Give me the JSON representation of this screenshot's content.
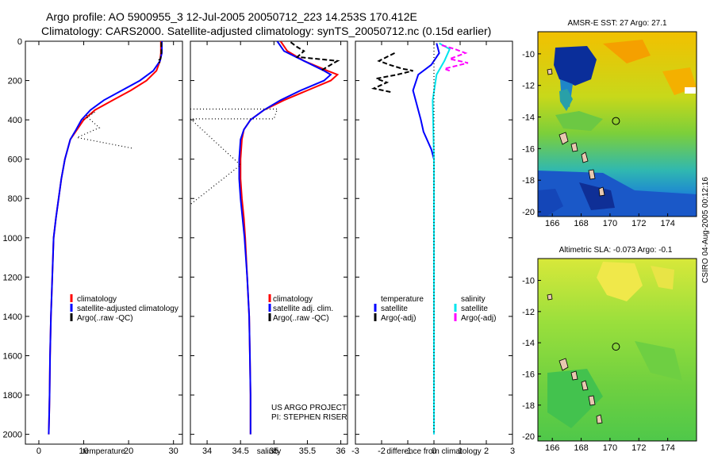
{
  "header": {
    "line1": "Argo profile: AO 5900955_3 12-Jul-2005 20050712_223 14.253S 170.412E",
    "line2": "Climatology: CARS2000. Satellite-adjusted climatology: synTS_20050712.nc (0.15d earlier)"
  },
  "credit": "CSIRO 04-Aug-2005 00:12:16",
  "project": {
    "line1": "US ARGO PROJECT",
    "line2": "PI: STEPHEN RISER"
  },
  "colors": {
    "climatology": "#ff0000",
    "satellite": "#0000ff",
    "salinity_sat": "#00e5ee",
    "argo_salinity": "#ff00ff",
    "argo": "#000000"
  },
  "chart_data": [
    {
      "type": "line",
      "name": "temperature",
      "xlabel": "temperature",
      "ylabel": "",
      "xlim": [
        -3,
        32
      ],
      "ylim": [
        2050,
        0
      ],
      "xticks": [
        "0",
        "10",
        "20",
        "30"
      ],
      "yticks": [
        "0",
        "200",
        "400",
        "600",
        "800",
        "1000",
        "1200",
        "1400",
        "1600",
        "1800",
        "2000"
      ],
      "legend": [
        "climatology",
        "satellite-adjusted climatology",
        "Argo(..raw -QC)"
      ],
      "legend_position": "bottom-right",
      "series": [
        {
          "name": "climatology",
          "color": "#ff0000",
          "style": "solid",
          "x": [
            27.2,
            27.2,
            27.0,
            26.2,
            24.0,
            20.5,
            16.5,
            12.5,
            10.0,
            8.5,
            7.0,
            5.8,
            5.0,
            4.4,
            3.8,
            3.3,
            3.0,
            2.7,
            2.5,
            2.4,
            2.3,
            2.2
          ],
          "y": [
            0,
            60,
            100,
            150,
            200,
            250,
            300,
            350,
            400,
            450,
            500,
            600,
            700,
            800,
            900,
            1000,
            1200,
            1400,
            1600,
            1800,
            1900,
            2000
          ]
        },
        {
          "name": "satellite-adjusted climatology",
          "color": "#0000ff",
          "style": "solid",
          "x": [
            27.4,
            27.4,
            27.0,
            25.5,
            22.5,
            18.5,
            14.5,
            11.5,
            9.5,
            8.3,
            7.0,
            5.8,
            5.0,
            4.4,
            3.8,
            3.3,
            3.0,
            2.7,
            2.5,
            2.4,
            2.3,
            2.2
          ],
          "y": [
            0,
            60,
            100,
            150,
            200,
            250,
            300,
            350,
            400,
            450,
            500,
            600,
            700,
            800,
            900,
            1000,
            1200,
            1400,
            1600,
            1800,
            1900,
            2000
          ]
        },
        {
          "name": "Argo(..raw -QC)",
          "color": "#000000",
          "style": "dashed",
          "x": [
            27.3,
            27.3,
            27.1,
            26.5,
            27.0
          ],
          "y": [
            5,
            60,
            90,
            100,
            110
          ]
        },
        {
          "name": "Argo(..raw -QC)",
          "color": "#000000",
          "style": "dotted",
          "x": [
            10.0,
            12.5,
            10.5,
            13.5,
            8.5,
            21.0
          ],
          "y": [
            400,
            360,
            380,
            440,
            490,
            545
          ]
        }
      ]
    },
    {
      "type": "line",
      "name": "salinity",
      "xlabel": "salinity",
      "ylabel": "",
      "xlim": [
        33.75,
        36.1
      ],
      "ylim": [
        2050,
        0
      ],
      "xticks": [
        "34",
        "34.5",
        "35",
        "35.5",
        "36"
      ],
      "legend": [
        "climatology",
        "satellite adj. clim.",
        "Argo(..raw -QC)"
      ],
      "legend_position": "bottom-right",
      "series": [
        {
          "name": "climatology",
          "color": "#ff0000",
          "style": "solid",
          "x": [
            35.1,
            35.2,
            35.45,
            35.8,
            35.95,
            35.85,
            35.5,
            35.15,
            34.85,
            34.65,
            34.55,
            34.52,
            34.5,
            34.5,
            34.52,
            34.55,
            34.57,
            34.6,
            34.63,
            34.64,
            34.65,
            34.65
          ],
          "y": [
            0,
            50,
            100,
            150,
            170,
            200,
            250,
            300,
            350,
            400,
            450,
            500,
            600,
            700,
            800,
            900,
            1000,
            1200,
            1400,
            1600,
            1800,
            2000
          ]
        },
        {
          "name": "satellite adj. clim.",
          "color": "#0000ff",
          "style": "solid",
          "x": [
            35.05,
            35.15,
            35.45,
            35.75,
            35.85,
            35.75,
            35.4,
            35.1,
            34.85,
            34.65,
            34.55,
            34.5,
            34.48,
            34.48,
            34.5,
            34.53,
            34.56,
            34.6,
            34.63,
            34.64,
            34.65,
            34.65
          ],
          "y": [
            0,
            50,
            100,
            150,
            170,
            200,
            250,
            300,
            350,
            400,
            450,
            500,
            600,
            700,
            800,
            900,
            1000,
            1200,
            1400,
            1600,
            1800,
            2000
          ]
        },
        {
          "name": "Argo(..raw -QC)",
          "color": "#000000",
          "style": "dashed",
          "x": [
            35.25,
            35.35,
            35.45,
            35.35,
            35.95,
            35.85,
            35.7
          ],
          "y": [
            5,
            30,
            50,
            80,
            100,
            120,
            150
          ]
        },
        {
          "name": "Argo(..raw -QC)",
          "color": "#000000",
          "style": "dotted",
          "x": [
            33.75,
            35.05,
            35.0,
            33.75,
            34.5,
            33.75
          ],
          "y": [
            345,
            345,
            395,
            395,
            630,
            830
          ]
        }
      ]
    },
    {
      "type": "line",
      "name": "difference",
      "xlabel": "difference from climatology",
      "ylabel": "",
      "xlim": [
        -3,
        3
      ],
      "ylim": [
        2050,
        0
      ],
      "xticks": [
        "-3",
        "-2",
        "-1",
        "0",
        "1",
        "2",
        "3"
      ],
      "legend": [
        "temperature",
        "satellite",
        "Argo(-adj)",
        "salinity",
        "satellite",
        "Argo(-adj)"
      ],
      "legend_position": "bottom",
      "series": [
        {
          "name": "temperature satellite",
          "color": "#0000ff",
          "style": "solid",
          "x": [
            0.1,
            0.2,
            -0.1,
            -0.6,
            -0.8,
            -0.5,
            -0.4,
            -0.1,
            0.0,
            0.0,
            0.0,
            0.0,
            0.0,
            0.0
          ],
          "y": [
            10,
            60,
            120,
            170,
            250,
            400,
            460,
            550,
            600,
            800,
            1000,
            1400,
            1800,
            2000
          ]
        },
        {
          "name": "salinity satellite",
          "color": "#00e5ee",
          "style": "solid",
          "x": [
            0.2,
            0.6,
            0.4,
            0.1,
            -0.05,
            0.0,
            0.0,
            0.0,
            0.0,
            0.0,
            0.0
          ],
          "y": [
            10,
            40,
            100,
            170,
            300,
            600,
            900,
            1200,
            1500,
            1800,
            2000
          ]
        },
        {
          "name": "Argo(-adj) temperature",
          "color": "#000000",
          "style": "dashed",
          "x": [
            -1.5,
            -1.8,
            -2.1,
            -1.7,
            -1.2,
            -0.8,
            -1.4,
            -2.2,
            -1.8,
            -2.3,
            -1.6
          ],
          "y": [
            60,
            80,
            100,
            120,
            140,
            150,
            170,
            190,
            210,
            240,
            260
          ]
        },
        {
          "name": "Argo(-adj) salinity",
          "color": "#ff00ff",
          "style": "dashed",
          "x": [
            0.3,
            0.8,
            1.2,
            0.6,
            1.3,
            0.4,
            0.6
          ],
          "y": [
            20,
            40,
            60,
            90,
            110,
            140,
            150
          ]
        },
        {
          "name": "zero line",
          "color": "#000000",
          "style": "dotted",
          "x": [
            0,
            0
          ],
          "y": [
            0,
            2000
          ]
        }
      ]
    },
    {
      "type": "heatmap",
      "name": "sst-map",
      "title": "AMSR-E SST: 27 Argo: 27.1",
      "xlim": [
        165,
        176
      ],
      "ylim": [
        -20.3,
        -8.6
      ],
      "xticks": [
        "166",
        "168",
        "170",
        "172",
        "174"
      ],
      "yticks": [
        "-10",
        "-12",
        "-14",
        "-16",
        "-18",
        "-20"
      ],
      "marker": {
        "x": 170.412,
        "y": -14.253
      }
    },
    {
      "type": "heatmap",
      "name": "sla-map",
      "title": "Altimetric SLA: -0.073 Argo: -0.1",
      "xlim": [
        165,
        176
      ],
      "ylim": [
        -20.3,
        -8.6
      ],
      "xticks": [
        "166",
        "168",
        "170",
        "172",
        "174"
      ],
      "yticks": [
        "-10",
        "-12",
        "-14",
        "-16",
        "-18",
        "-20"
      ],
      "marker": {
        "x": 170.412,
        "y": -14.253
      }
    }
  ]
}
